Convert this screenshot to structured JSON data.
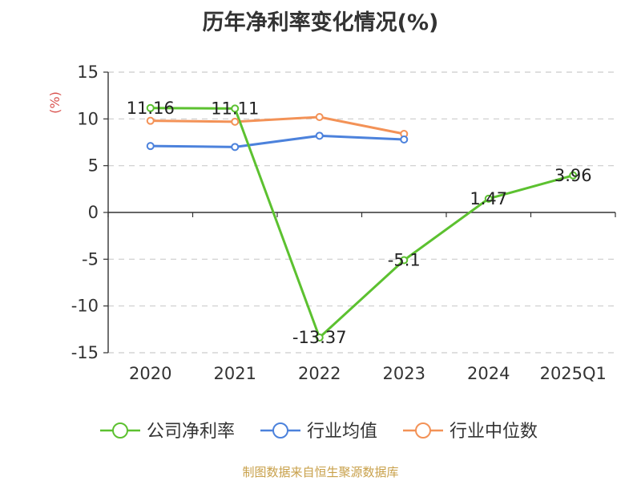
{
  "chart_data": {
    "type": "line",
    "title": "历年净利率变化情况(%)",
    "ylabel": "(%)",
    "categories": [
      "2020",
      "2021",
      "2022",
      "2023",
      "2024",
      "2025Q1"
    ],
    "ylim": [
      -15,
      15
    ],
    "yticks": [
      15,
      10,
      5,
      0,
      -5,
      -10,
      -15
    ],
    "grid": true,
    "legend_position": "bottom",
    "series": [
      {
        "name": "公司净利率",
        "color": "#5cc130",
        "values": [
          11.16,
          11.11,
          -13.37,
          -5.1,
          1.47,
          3.96
        ],
        "labels": [
          "11.16",
          "11.11",
          "-13.37",
          "-5.1",
          "1.47",
          "3.96"
        ]
      },
      {
        "name": "行业均值",
        "color": "#4c82dc",
        "values": [
          7.1,
          7.0,
          8.2,
          7.8,
          null,
          null
        ]
      },
      {
        "name": "行业中位数",
        "color": "#f39257",
        "values": [
          9.8,
          9.7,
          10.2,
          8.4,
          null,
          null
        ]
      }
    ]
  },
  "source": "制图数据来自恒生聚源数据库"
}
